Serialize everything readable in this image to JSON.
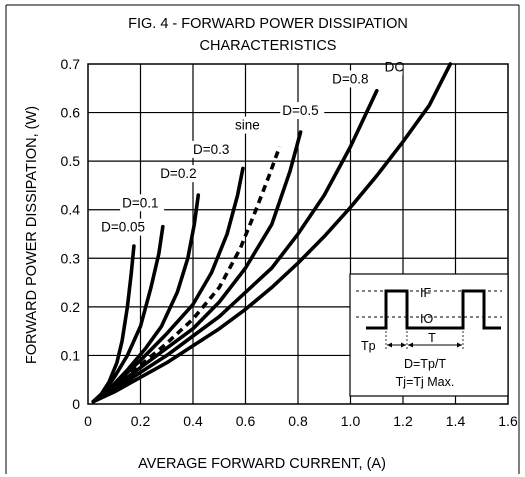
{
  "chart_data": {
    "type": "line",
    "title_line1": "FIG. 4 - FORWARD POWER DISSIPATION",
    "title_line2": "CHARACTERISTICS",
    "xlabel": "AVERAGE FORWARD CURRENT, (A)",
    "ylabel": "FORWARD POWER DISSIPATION, (W)",
    "xlim": [
      0,
      1.6
    ],
    "ylim": [
      0,
      0.7
    ],
    "xticks": [
      "0",
      "0.2",
      "0.4",
      "0.6",
      "0.8",
      "1.0",
      "1.2",
      "1.4",
      "1.6"
    ],
    "yticks": [
      "0",
      "0.1",
      "0.2",
      "0.3",
      "0.4",
      "0.5",
      "0.6",
      "0.7"
    ],
    "grid": true,
    "series": [
      {
        "name": "D=0.05",
        "dashed": false,
        "label_at": [
          0.05,
          0.355
        ],
        "points": [
          [
            0.02,
            0.005
          ],
          [
            0.05,
            0.02
          ],
          [
            0.08,
            0.045
          ],
          [
            0.11,
            0.085
          ],
          [
            0.13,
            0.13
          ],
          [
            0.15,
            0.2
          ],
          [
            0.165,
            0.27
          ],
          [
            0.175,
            0.325
          ]
        ]
      },
      {
        "name": "D=0.1",
        "dashed": false,
        "label_at": [
          0.13,
          0.405
        ],
        "points": [
          [
            0.02,
            0.005
          ],
          [
            0.06,
            0.025
          ],
          [
            0.1,
            0.055
          ],
          [
            0.15,
            0.1
          ],
          [
            0.2,
            0.16
          ],
          [
            0.24,
            0.24
          ],
          [
            0.27,
            0.31
          ],
          [
            0.285,
            0.365
          ]
        ]
      },
      {
        "name": "D=0.2",
        "dashed": false,
        "label_at": [
          0.275,
          0.465
        ],
        "points": [
          [
            0.02,
            0.005
          ],
          [
            0.08,
            0.03
          ],
          [
            0.15,
            0.07
          ],
          [
            0.22,
            0.115
          ],
          [
            0.28,
            0.16
          ],
          [
            0.34,
            0.23
          ],
          [
            0.38,
            0.3
          ],
          [
            0.405,
            0.37
          ],
          [
            0.42,
            0.43
          ]
        ]
      },
      {
        "name": "D=0.3",
        "dashed": false,
        "label_at": [
          0.4,
          0.515
        ],
        "points": [
          [
            0.02,
            0.005
          ],
          [
            0.1,
            0.04
          ],
          [
            0.2,
            0.09
          ],
          [
            0.3,
            0.145
          ],
          [
            0.4,
            0.205
          ],
          [
            0.47,
            0.27
          ],
          [
            0.53,
            0.35
          ],
          [
            0.57,
            0.43
          ],
          [
            0.59,
            0.485
          ]
        ]
      },
      {
        "name": "sine",
        "dashed": true,
        "label_at": [
          0.56,
          0.565
        ],
        "points": [
          [
            0.02,
            0.005
          ],
          [
            0.1,
            0.035
          ],
          [
            0.2,
            0.08
          ],
          [
            0.3,
            0.125
          ],
          [
            0.4,
            0.175
          ],
          [
            0.5,
            0.24
          ],
          [
            0.58,
            0.32
          ],
          [
            0.64,
            0.4
          ],
          [
            0.69,
            0.47
          ],
          [
            0.73,
            0.53
          ]
        ]
      },
      {
        "name": "D=0.5",
        "dashed": false,
        "label_at": [
          0.74,
          0.595
        ],
        "points": [
          [
            0.02,
            0.005
          ],
          [
            0.1,
            0.035
          ],
          [
            0.2,
            0.075
          ],
          [
            0.3,
            0.115
          ],
          [
            0.4,
            0.155
          ],
          [
            0.5,
            0.21
          ],
          [
            0.6,
            0.28
          ],
          [
            0.7,
            0.37
          ],
          [
            0.77,
            0.48
          ],
          [
            0.81,
            0.56
          ]
        ]
      },
      {
        "name": "D=0.8",
        "dashed": false,
        "label_at": [
          0.93,
          0.66
        ],
        "points": [
          [
            0.02,
            0.005
          ],
          [
            0.1,
            0.03
          ],
          [
            0.2,
            0.065
          ],
          [
            0.3,
            0.1
          ],
          [
            0.4,
            0.14
          ],
          [
            0.5,
            0.18
          ],
          [
            0.6,
            0.23
          ],
          [
            0.7,
            0.28
          ],
          [
            0.8,
            0.35
          ],
          [
            0.9,
            0.43
          ],
          [
            1.0,
            0.53
          ],
          [
            1.1,
            0.645
          ]
        ]
      },
      {
        "name": "DC",
        "dashed": false,
        "label_at": [
          1.13,
          0.685
        ],
        "points": [
          [
            0.02,
            0.005
          ],
          [
            0.1,
            0.025
          ],
          [
            0.2,
            0.055
          ],
          [
            0.3,
            0.085
          ],
          [
            0.4,
            0.12
          ],
          [
            0.5,
            0.155
          ],
          [
            0.6,
            0.195
          ],
          [
            0.7,
            0.24
          ],
          [
            0.8,
            0.29
          ],
          [
            0.9,
            0.345
          ],
          [
            1.0,
            0.405
          ],
          [
            1.1,
            0.47
          ],
          [
            1.2,
            0.54
          ],
          [
            1.3,
            0.615
          ],
          [
            1.38,
            0.7
          ]
        ]
      }
    ],
    "inset": {
      "if_label": "IF",
      "io_label": "IO",
      "tp_label": "Tp",
      "t_label": "T",
      "formula": "D=Tp/T",
      "condition": "Tj=Tj Max."
    }
  }
}
